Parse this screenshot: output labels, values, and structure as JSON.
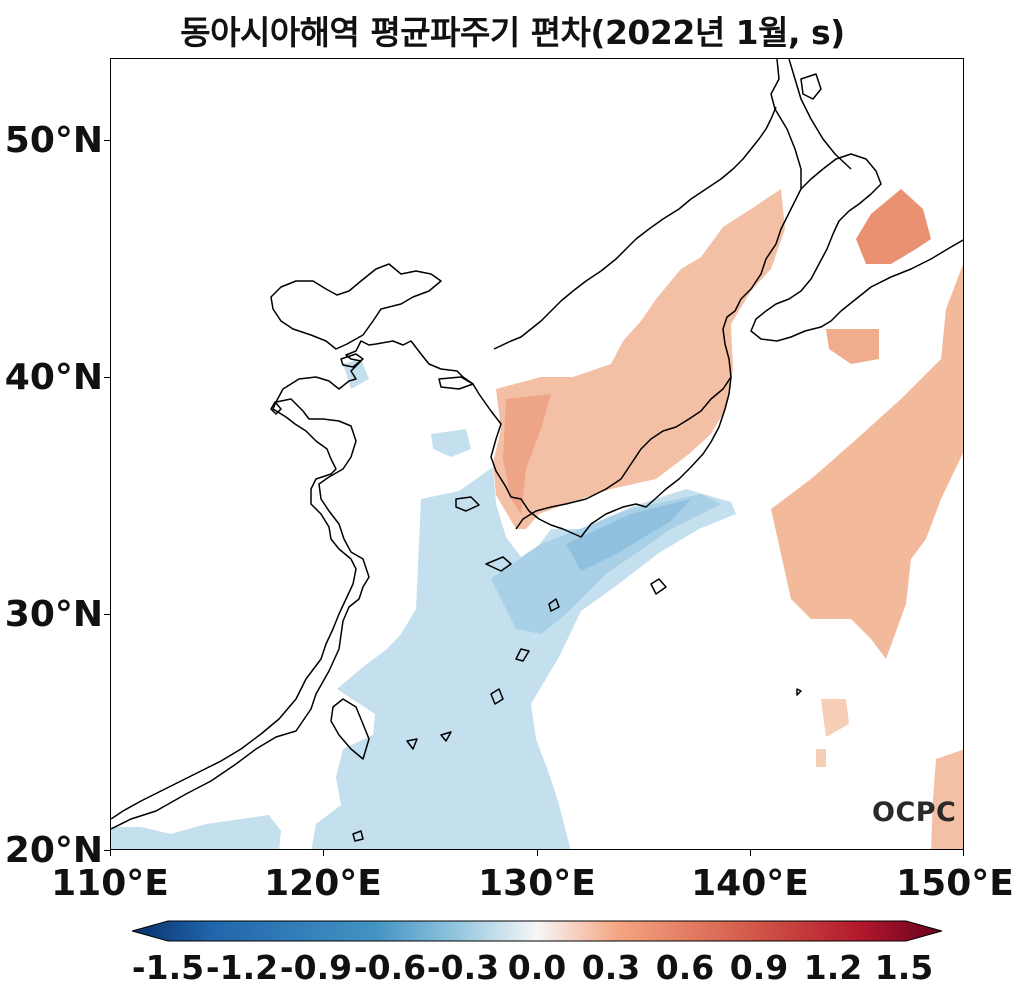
{
  "title": "동아시아해역 평균파주기 편차(2022년 1월, s)",
  "axes": {
    "lat_labels": [
      "50°N",
      "40°N",
      "30°N",
      "20°N"
    ],
    "lon_labels": [
      "110°E",
      "120°E",
      "130°E",
      "140°E",
      "150°E"
    ],
    "lat_range": [
      20,
      53.4
    ],
    "lon_range": [
      110,
      150
    ]
  },
  "colorbar": {
    "ticks": [
      "-1.5",
      "-1.2",
      "-0.9",
      "-0.6",
      "-0.3",
      "0.0",
      "0.3",
      "0.6",
      "0.9",
      "1.2",
      "1.5"
    ],
    "range": [
      -1.5,
      1.5
    ],
    "colormap": "RdBu_r",
    "extend": "both"
  },
  "colors": {
    "positive": "#f3b69a",
    "positive_strong": "#e27f62",
    "negative": "#c1ddec",
    "negative_strong": "#8fc1de",
    "coastline": "#000000"
  },
  "watermark": "OCPC"
}
